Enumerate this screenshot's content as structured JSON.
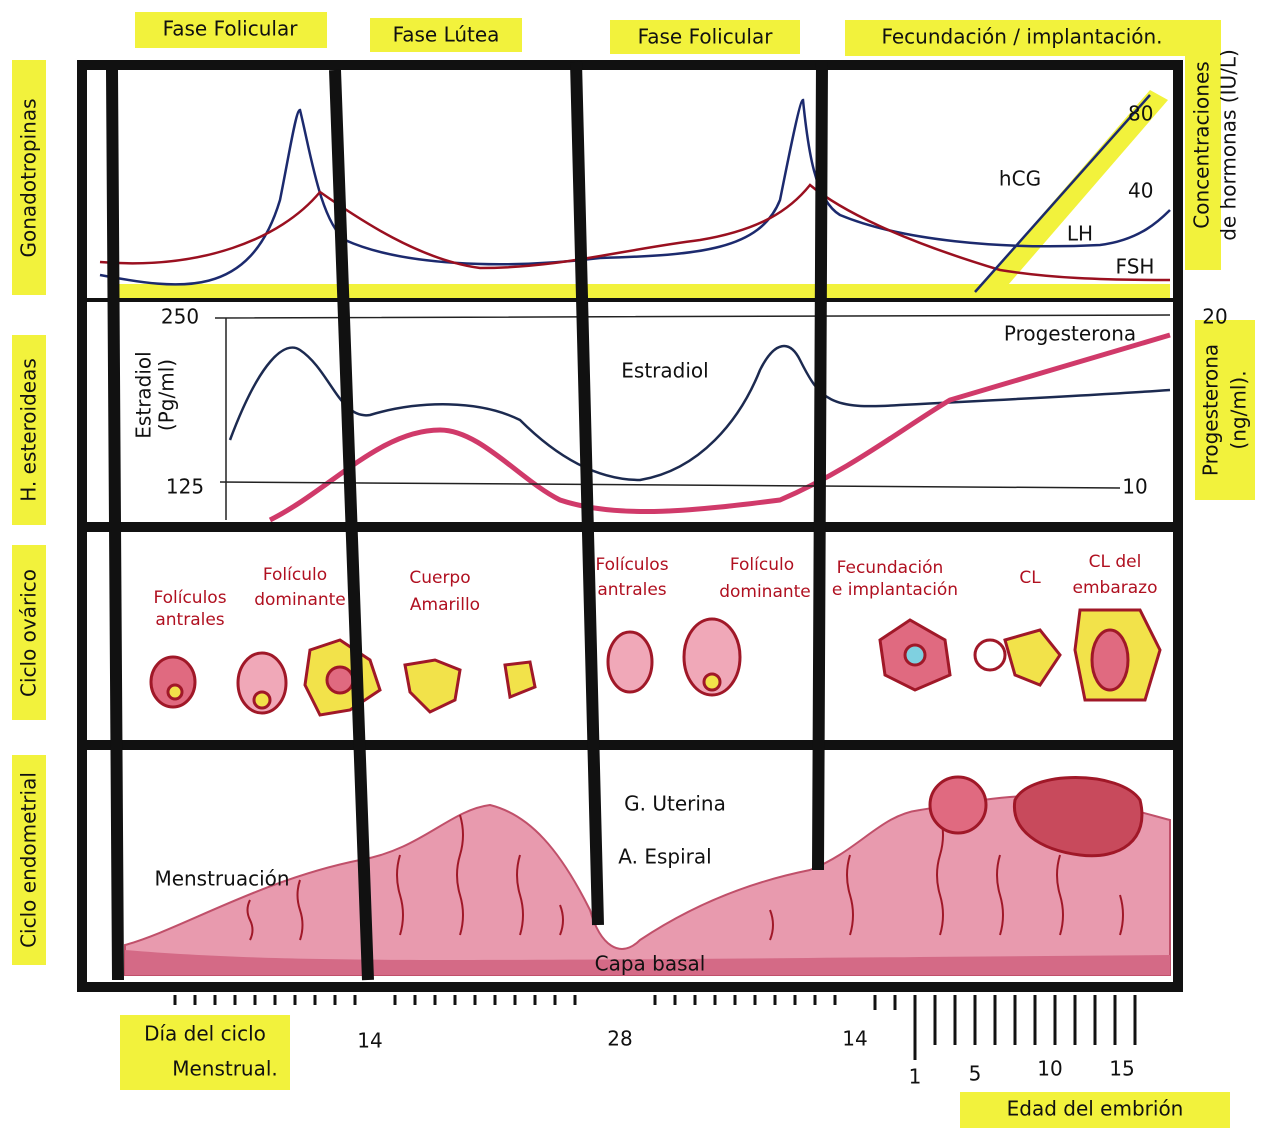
{
  "phases": [
    "Fase Folicular",
    "Fase Lútea",
    "Fase Folicular",
    "Fecundación / implantación."
  ],
  "row_labels": [
    "Gonadotropinas",
    "H. esteroideas",
    "Ciclo ovárico",
    "Ciclo endometrial"
  ],
  "right_labels": {
    "hormones": [
      "Concentraciones",
      "de hormonas (IU/L)"
    ],
    "progesterone": [
      "Progesterona",
      "(ng/ml)."
    ]
  },
  "gonadotropins": {
    "ticks": [
      "80",
      "40"
    ],
    "labels": [
      "hCG",
      "LH",
      "FSH"
    ]
  },
  "steroids": {
    "axis_label": [
      "Estradiol",
      "(Pg/ml)"
    ],
    "left_ticks": [
      "250",
      "125"
    ],
    "right_ticks": [
      "20",
      "10"
    ],
    "labels": [
      "Estradiol",
      "Progesterona"
    ]
  },
  "ovarian": {
    "labels": [
      [
        "Folículos",
        "antrales"
      ],
      [
        "Folículo",
        "dominante"
      ],
      [
        "Cuerpo",
        "Amarillo"
      ],
      [
        "Folículos",
        "antrales"
      ],
      [
        "Folículo",
        "dominante"
      ],
      [
        "Fecundación",
        "e implantación"
      ],
      [
        "CL"
      ],
      [
        "CL del",
        "embarazo"
      ]
    ]
  },
  "endometrial": {
    "labels": [
      "Menstruación",
      "G. Uterina",
      "A. Espiral",
      "Capa basal"
    ]
  },
  "x_axis": {
    "title": [
      "Día del ciclo",
      "Menstrual."
    ],
    "cycle_ticks": [
      "14",
      "28",
      "14"
    ],
    "embryo_ticks": [
      "1",
      "5",
      "10",
      "15"
    ],
    "embryo_title": "Edad del embrión"
  }
}
